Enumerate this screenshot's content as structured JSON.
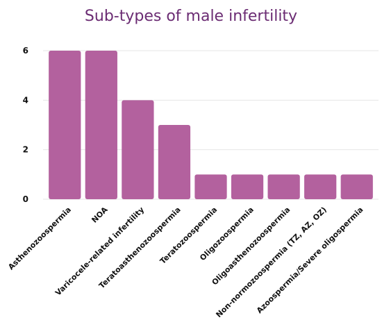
{
  "chart_data": {
    "type": "bar",
    "title": "Sub-types of male infertility",
    "xlabel": "",
    "ylabel": "",
    "ylim": [
      0,
      6
    ],
    "yticks": [
      0,
      2,
      4,
      6
    ],
    "grid": true,
    "bar_color": "#b3619e",
    "title_color": "#6b2c73",
    "categories": [
      "Asthenozoospermia",
      "NOA",
      "Varicocele-related infertility",
      "Teratoasthenozoospermia",
      "Teratozoospermia",
      "Oligozoospermia",
      "Oligoasthenozoospermia",
      "Non-normozoospermia (TZ, AZ, OZ)",
      "Azoospermia/Severe oligospermia"
    ],
    "values": [
      6,
      6,
      4,
      3,
      1,
      1,
      1,
      1,
      1
    ]
  }
}
